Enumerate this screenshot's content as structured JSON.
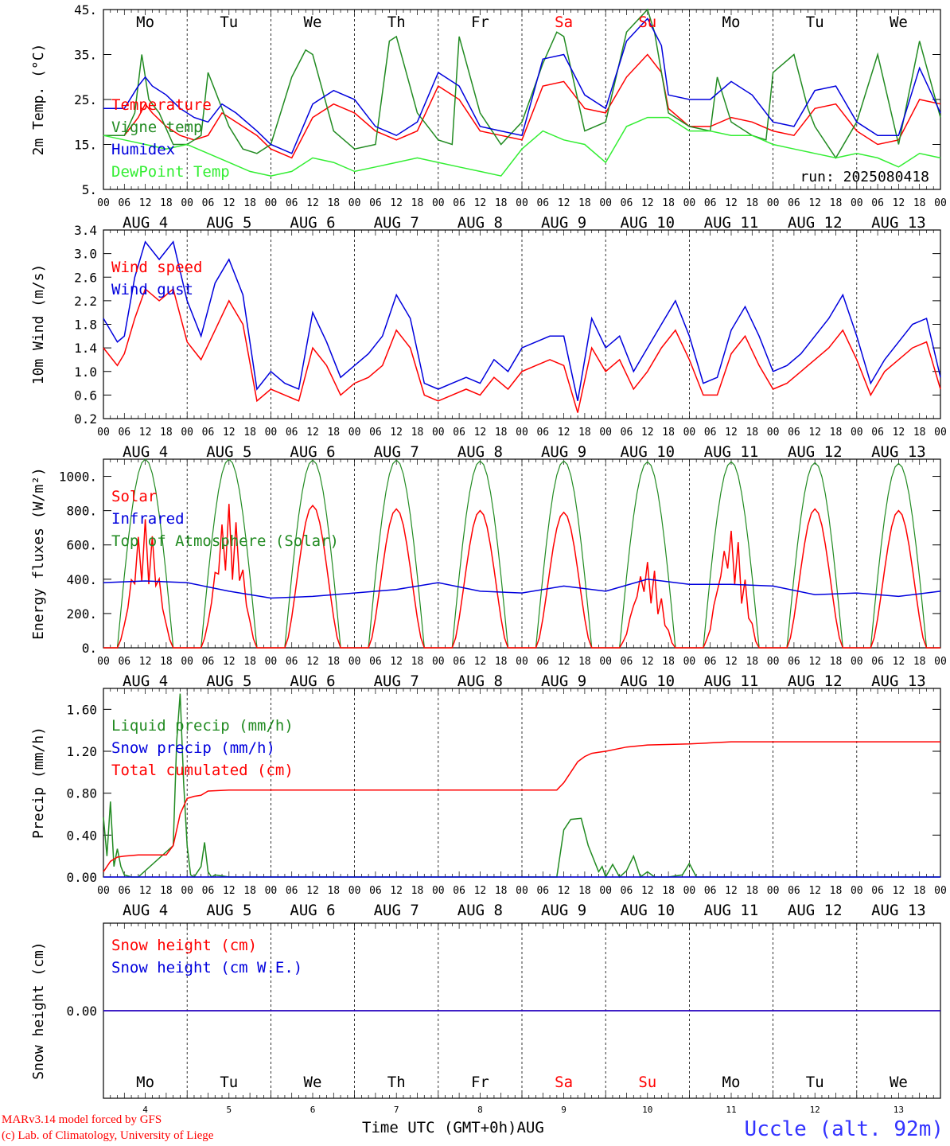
{
  "days": {
    "weekday": [
      "Mo",
      "Tu",
      "We",
      "Th",
      "Fr",
      "Sa",
      "Su",
      "Mo",
      "Tu",
      "We"
    ],
    "weekend_flags": [
      false,
      false,
      false,
      false,
      false,
      true,
      true,
      false,
      false,
      false
    ],
    "dates": [
      "AUG  4",
      "AUG  5",
      "AUG  6",
      "AUG  7",
      "AUG  8",
      "AUG  9",
      "AUG 10",
      "AUG 11",
      "AUG 12",
      "AUG 13"
    ],
    "day_numbers": [
      "4",
      "5",
      "6",
      "7",
      "8",
      "9",
      "10",
      "11",
      "12",
      "13"
    ],
    "hour_ticks": [
      "00",
      "06",
      "12",
      "18"
    ],
    "end_tick": "00"
  },
  "colors": {
    "red": "#ff0000",
    "green": "#228b22",
    "lightgreen": "#33ee33",
    "blue": "#0000dd",
    "weekend_label": "#ff0000",
    "weekday_label": "#000000"
  },
  "footer": {
    "model": "MARv3.14 model forced by GFS",
    "lab": "(c) Lab. of Climatology, University of Liege",
    "x_title": "Time UTC (GMT+0h)AUG",
    "station": "Uccle (alt. 92m)"
  },
  "chart_data": [
    {
      "type": "line",
      "id": "temp",
      "ylabel": "2m Temp. (°C)",
      "ylim": [
        5,
        45
      ],
      "yticks": [
        5,
        15,
        25,
        35,
        45
      ],
      "ytick_labels": [
        "5.",
        "15.",
        "25.",
        "35.",
        "45."
      ],
      "x_unit": "hours since AUG 4 00 UTC",
      "xlim": [
        0,
        240
      ],
      "annotation": "run: 2025080418",
      "series": [
        {
          "name": "Temperature",
          "color": "red",
          "x": [
            0,
            6,
            10,
            12,
            14,
            18,
            22,
            26,
            30,
            34,
            38,
            44,
            48,
            54,
            60,
            66,
            72,
            78,
            84,
            90,
            96,
            102,
            108,
            114,
            120,
            126,
            132,
            138,
            144,
            150,
            156,
            160,
            162,
            168,
            174,
            180,
            186,
            192,
            198,
            204,
            210,
            216,
            222,
            228,
            234,
            240
          ],
          "y": [
            17,
            17,
            21,
            24,
            22,
            19,
            17,
            16,
            17,
            22,
            20,
            17,
            14,
            12,
            21,
            24,
            22,
            18,
            16,
            18,
            28,
            25,
            18,
            17,
            16,
            28,
            29,
            23,
            22,
            30,
            35,
            31,
            23,
            19,
            19,
            21,
            20,
            18,
            17,
            23,
            24,
            18,
            15,
            16,
            25,
            24
          ]
        },
        {
          "name": "Vigne temp",
          "color": "green",
          "x": [
            0,
            6,
            9,
            11,
            13,
            16,
            20,
            24,
            28,
            30,
            32,
            36,
            40,
            44,
            48,
            54,
            58,
            60,
            66,
            72,
            78,
            82,
            84,
            90,
            96,
            100,
            102,
            108,
            114,
            120,
            126,
            130,
            132,
            138,
            144,
            150,
            156,
            158,
            162,
            168,
            174,
            176,
            180,
            186,
            190,
            192,
            198,
            202,
            204,
            210,
            216,
            222,
            228,
            234,
            240
          ],
          "y": [
            17,
            17,
            22,
            35,
            25,
            22,
            15,
            15,
            17,
            31,
            27,
            19,
            14,
            13,
            15,
            30,
            36,
            35,
            18,
            14,
            15,
            38,
            39,
            22,
            16,
            15,
            39,
            22,
            15,
            20,
            33,
            40,
            39,
            18,
            20,
            40,
            45,
            40,
            22,
            19,
            18,
            30,
            20,
            17,
            16,
            31,
            35,
            23,
            19,
            12,
            20,
            35,
            15,
            38,
            21
          ]
        },
        {
          "name": "Humidex",
          "color": "blue",
          "x": [
            0,
            6,
            10,
            12,
            14,
            18,
            22,
            26,
            30,
            34,
            38,
            44,
            48,
            54,
            60,
            66,
            72,
            78,
            84,
            90,
            96,
            102,
            108,
            114,
            120,
            126,
            132,
            138,
            144,
            150,
            156,
            160,
            162,
            168,
            174,
            180,
            186,
            192,
            198,
            204,
            210,
            216,
            222,
            228,
            234,
            240
          ],
          "y": [
            23,
            23,
            28,
            30,
            28,
            26,
            23,
            21,
            20,
            24,
            22,
            18,
            15,
            13,
            24,
            27,
            25,
            19,
            17,
            20,
            31,
            28,
            19,
            18,
            17,
            34,
            35,
            26,
            23,
            38,
            43,
            37,
            26,
            25,
            25,
            29,
            26,
            20,
            19,
            27,
            28,
            20,
            17,
            17,
            32,
            22
          ]
        },
        {
          "name": "DewPoint Temp",
          "color": "lightgreen",
          "x": [
            0,
            6,
            12,
            18,
            24,
            30,
            36,
            42,
            48,
            54,
            60,
            66,
            72,
            78,
            84,
            90,
            96,
            102,
            108,
            114,
            120,
            126,
            132,
            138,
            144,
            150,
            156,
            162,
            168,
            174,
            180,
            186,
            192,
            198,
            204,
            210,
            216,
            222,
            228,
            234,
            240
          ],
          "y": [
            17,
            16,
            15,
            14,
            15,
            13,
            11,
            9,
            8,
            9,
            12,
            11,
            9,
            10,
            11,
            12,
            11,
            10,
            9,
            8,
            14,
            18,
            16,
            15,
            11,
            19,
            21,
            21,
            18,
            18,
            17,
            17,
            15,
            14,
            13,
            12,
            13,
            12,
            10,
            13,
            12
          ]
        }
      ]
    },
    {
      "type": "line",
      "id": "wind",
      "ylabel": "10m Wind (m/s)",
      "ylim": [
        0.2,
        3.4
      ],
      "yticks": [
        0.2,
        0.6,
        1.0,
        1.4,
        1.8,
        2.2,
        2.6,
        3.0,
        3.4
      ],
      "ytick_labels": [
        "0.2",
        "0.6",
        "1.0",
        "1.4",
        "1.8",
        "2.2",
        "2.6",
        "3.0",
        "3.4"
      ],
      "xlim": [
        0,
        240
      ],
      "series": [
        {
          "name": "Wind speed",
          "color": "red",
          "x": [
            0,
            4,
            6,
            9,
            12,
            16,
            20,
            24,
            28,
            32,
            36,
            40,
            44,
            48,
            52,
            56,
            60,
            64,
            68,
            72,
            76,
            80,
            84,
            88,
            92,
            96,
            100,
            104,
            108,
            112,
            116,
            120,
            124,
            128,
            132,
            136,
            140,
            144,
            148,
            152,
            156,
            160,
            164,
            168,
            172,
            176,
            180,
            184,
            188,
            192,
            196,
            200,
            204,
            208,
            212,
            216,
            220,
            224,
            228,
            232,
            236,
            240
          ],
          "y": [
            1.4,
            1.1,
            1.3,
            1.9,
            2.4,
            2.2,
            2.4,
            1.5,
            1.2,
            1.7,
            2.2,
            1.8,
            0.5,
            0.7,
            0.6,
            0.5,
            1.4,
            1.1,
            0.6,
            0.8,
            0.9,
            1.1,
            1.7,
            1.4,
            0.6,
            0.5,
            0.6,
            0.7,
            0.6,
            0.9,
            0.7,
            1.0,
            1.1,
            1.2,
            1.1,
            0.3,
            1.4,
            1.0,
            1.2,
            0.7,
            1.0,
            1.4,
            1.7,
            1.2,
            0.6,
            0.6,
            1.3,
            1.6,
            1.1,
            0.7,
            0.8,
            1.0,
            1.2,
            1.4,
            1.7,
            1.2,
            0.6,
            1.0,
            1.2,
            1.4,
            1.5,
            0.7
          ]
        },
        {
          "name": "Wind gust",
          "color": "blue",
          "x": [
            0,
            4,
            6,
            9,
            12,
            16,
            20,
            24,
            28,
            32,
            36,
            40,
            44,
            48,
            52,
            56,
            60,
            64,
            68,
            72,
            76,
            80,
            84,
            88,
            92,
            96,
            100,
            104,
            108,
            112,
            116,
            120,
            124,
            128,
            132,
            136,
            140,
            144,
            148,
            152,
            156,
            160,
            164,
            168,
            172,
            176,
            180,
            184,
            188,
            192,
            196,
            200,
            204,
            208,
            212,
            216,
            220,
            224,
            228,
            232,
            236,
            240
          ],
          "y": [
            1.9,
            1.5,
            1.6,
            2.6,
            3.2,
            2.9,
            3.2,
            2.2,
            1.6,
            2.5,
            2.9,
            2.3,
            0.7,
            1.0,
            0.8,
            0.7,
            2.0,
            1.5,
            0.9,
            1.1,
            1.3,
            1.6,
            2.3,
            1.9,
            0.8,
            0.7,
            0.8,
            0.9,
            0.8,
            1.2,
            1.0,
            1.4,
            1.5,
            1.6,
            1.6,
            0.5,
            1.9,
            1.4,
            1.6,
            1.0,
            1.4,
            1.8,
            2.2,
            1.6,
            0.8,
            0.9,
            1.7,
            2.1,
            1.6,
            1.0,
            1.1,
            1.3,
            1.6,
            1.9,
            2.3,
            1.6,
            0.8,
            1.2,
            1.5,
            1.8,
            1.9,
            0.9
          ]
        }
      ]
    },
    {
      "type": "line",
      "id": "energy",
      "ylabel": "Energy fluxes (W/m²)",
      "ylim": [
        0,
        1100
      ],
      "yticks": [
        0,
        200,
        400,
        600,
        800,
        1000
      ],
      "ytick_labels": [
        "0.",
        "200.",
        "400.",
        "600.",
        "800.",
        "1000."
      ],
      "xlim": [
        0,
        240
      ],
      "diurnal": {
        "toa_peak": [
          1100,
          1100,
          1095,
          1095,
          1090,
          1090,
          1085,
          1085,
          1080,
          1075
        ],
        "solar_peak": [
          750,
          840,
          830,
          810,
          800,
          790,
          510,
          700,
          810,
          800
        ],
        "noisy_days": [
          0,
          1,
          6,
          7
        ],
        "sunrise_hour": 4,
        "sunset_hour": 20
      },
      "series": [
        {
          "name": "Solar",
          "color": "red"
        },
        {
          "name": "Infrared",
          "color": "blue",
          "x": [
            0,
            12,
            24,
            36,
            48,
            60,
            72,
            84,
            96,
            108,
            120,
            132,
            144,
            156,
            168,
            180,
            192,
            204,
            216,
            228,
            240
          ],
          "y": [
            380,
            390,
            380,
            330,
            290,
            300,
            320,
            340,
            380,
            330,
            320,
            360,
            330,
            400,
            370,
            370,
            360,
            310,
            320,
            300,
            330
          ]
        },
        {
          "name": "Top of Atmosphere (Solar)",
          "color": "green"
        }
      ]
    },
    {
      "type": "line",
      "id": "precip",
      "ylabel": "Precip (mm/h)",
      "ylim": [
        0,
        1.8
      ],
      "yticks": [
        0,
        0.4,
        0.8,
        1.2,
        1.6
      ],
      "ytick_labels": [
        "0.00",
        "0.40",
        "0.80",
        "1.20",
        "1.60"
      ],
      "xlim": [
        0,
        240
      ],
      "series": [
        {
          "name": "Liquid precip (mm/h)",
          "color": "green",
          "x": [
            0,
            1,
            2,
            3,
            4,
            5,
            6,
            8,
            10,
            20,
            21,
            22,
            23,
            24,
            25,
            26,
            28,
            29,
            30,
            31,
            32,
            36,
            130,
            132,
            134,
            137,
            139,
            142,
            143,
            144,
            146,
            148,
            150,
            152,
            154,
            156,
            158,
            160,
            162,
            166,
            168,
            170,
            240
          ],
          "y": [
            0.57,
            0.2,
            0.72,
            0.1,
            0.27,
            0.1,
            0.02,
            0,
            0,
            0.3,
            1.3,
            1.75,
            0.9,
            0.3,
            0.02,
            0,
            0.1,
            0.33,
            0.05,
            0,
            0.02,
            0,
            0,
            0.45,
            0.55,
            0.56,
            0.3,
            0.05,
            0.1,
            0,
            0.12,
            0,
            0.06,
            0.2,
            0,
            0.05,
            0,
            0,
            0,
            0.02,
            0.13,
            0,
            0
          ]
        },
        {
          "name": "Snow precip (mm/h)",
          "color": "blue",
          "x": [
            0,
            240
          ],
          "y": [
            0,
            0
          ]
        },
        {
          "name": "Total cumulated (cm)",
          "color": "red",
          "x": [
            0,
            2,
            4,
            6,
            10,
            18,
            20,
            22,
            24,
            26,
            28,
            30,
            36,
            48,
            60,
            120,
            130,
            132,
            134,
            136,
            138,
            140,
            142,
            144,
            150,
            156,
            168,
            180,
            240
          ],
          "y": [
            0.05,
            0.15,
            0.19,
            0.2,
            0.21,
            0.21,
            0.3,
            0.6,
            0.75,
            0.77,
            0.78,
            0.82,
            0.83,
            0.83,
            0.83,
            0.83,
            0.83,
            0.9,
            1.0,
            1.1,
            1.15,
            1.18,
            1.19,
            1.2,
            1.24,
            1.26,
            1.27,
            1.29,
            1.29
          ]
        }
      ]
    },
    {
      "type": "line",
      "id": "snow",
      "ylabel": "Snow height (cm)",
      "ylim": [
        -1,
        1
      ],
      "yticks": [
        0
      ],
      "ytick_labels": [
        "0.00"
      ],
      "xlim": [
        0,
        240
      ],
      "series": [
        {
          "name": "Snow height (cm)",
          "color": "red",
          "x": [
            0,
            240
          ],
          "y": [
            0,
            0
          ]
        },
        {
          "name": "Snow height (cm W.E.)",
          "color": "blue",
          "x": [
            0,
            240
          ],
          "y": [
            0,
            0
          ]
        }
      ]
    }
  ]
}
